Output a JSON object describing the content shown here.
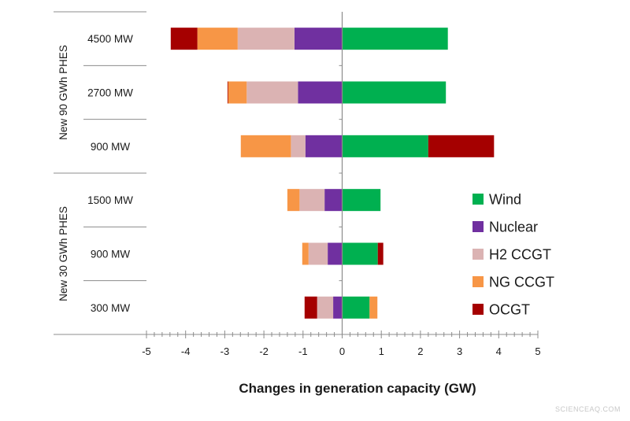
{
  "chart_data": {
    "type": "bar",
    "orientation": "horizontal",
    "stacked": true,
    "title": "",
    "xlabel": "Changes in generation capacity (GW)",
    "ylabel": "",
    "xlim": [
      -5,
      5
    ],
    "xticks": [
      "-5",
      "-4",
      "-3",
      "-2",
      "-1",
      "0",
      "1",
      "2",
      "3",
      "4",
      "5"
    ],
    "grid": false,
    "legend_position": "right",
    "groups": [
      {
        "label": "New 90 GWh PHES",
        "categories": [
          "4500 MW",
          "2700 MW",
          "900 MW"
        ]
      },
      {
        "label": "New 30 GWh PHES",
        "categories": [
          "1500 MW",
          "900 MW",
          "300 MW"
        ]
      }
    ],
    "categories": [
      "4500 MW",
      "2700 MW",
      "900 MW",
      "1500 MW",
      "900 MW",
      "300 MW"
    ],
    "series": [
      {
        "name": "Wind",
        "color": "#00b050",
        "values": [
          2.7,
          2.65,
          2.2,
          0.98,
          0.91,
          0.7
        ]
      },
      {
        "name": "Nuclear",
        "color": "#7030a0",
        "values": [
          -1.22,
          -1.13,
          -0.94,
          -0.45,
          -0.37,
          -0.23
        ]
      },
      {
        "name": "H2 CCGT",
        "color": "#dbb3b3",
        "values": [
          -1.45,
          -1.31,
          -0.37,
          -0.64,
          -0.49,
          -0.41
        ]
      },
      {
        "name": "NG CCGT",
        "color": "#f79646",
        "values": [
          -1.03,
          -0.48,
          -1.28,
          -0.31,
          -0.16,
          0.2
        ]
      },
      {
        "name": "OCGT",
        "color": "#a50000",
        "values": [
          -0.68,
          -0.01,
          1.68,
          0,
          0.14,
          -0.32
        ]
      }
    ]
  },
  "watermark": "SCIENCEAQ.COM"
}
